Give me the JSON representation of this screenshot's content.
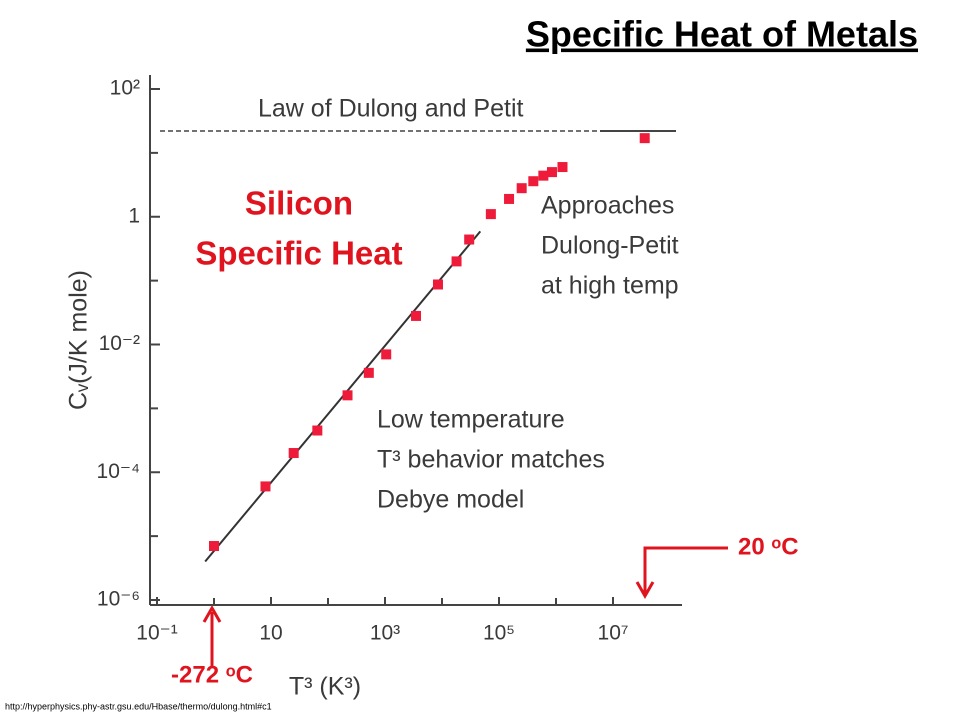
{
  "chart_data": {
    "type": "scatter",
    "title": "Specific Heat of Metals",
    "x_label": "T³ (K³)",
    "y_label": "Cᵥ(J/K mole)",
    "log_x": true,
    "log_y": true,
    "xlim": [
      0.1,
      100000000
    ],
    "ylim": [
      1e-06,
      100
    ],
    "xticks": [
      {
        "value": 0.1,
        "label": "10⁻¹"
      },
      10,
      {
        "value": 1000,
        "label": "10³"
      },
      {
        "value": 100000,
        "label": "10⁵"
      },
      {
        "value": 10000000,
        "label": "10⁷"
      }
    ],
    "minor_xticks": [
      1,
      100,
      10000,
      1000000
    ],
    "yticks": [
      {
        "value": 100,
        "label": "10²"
      },
      1,
      {
        "value": 0.01,
        "label": "10⁻²"
      },
      {
        "value": 0.0001,
        "label": "10⁻⁴"
      },
      {
        "value": 1e-06,
        "label": "10⁻⁶"
      }
    ],
    "minor_yticks": [
      10,
      0.1,
      0.001,
      1e-05
    ],
    "color": "#ee1c3a",
    "x": [
      1,
      8,
      25,
      65,
      220,
      520,
      1050,
      3500,
      8500,
      18000,
      30000,
      72000,
      150000,
      250000,
      400000,
      600000,
      850000,
      1300000,
      36000000
    ],
    "values": [
      7e-06,
      6e-05,
      0.0002,
      0.00045,
      0.0016,
      0.0036,
      0.007,
      0.028,
      0.087,
      0.2,
      0.44,
      1.1,
      1.9,
      2.8,
      3.6,
      4.4,
      5,
      6,
      17
    ],
    "fit_line": {
      "x": [
        0.7,
        47000
      ],
      "y": [
        4e-06,
        0.59
      ]
    },
    "dulong_petit_value": 22,
    "dulong_petit_label": "Law of Dulong and Petit",
    "high_temp_note": [
      "Approaches",
      "Dulong-Petit",
      "at high temp"
    ],
    "low_temp_note": [
      "Low temperature",
      "T³ behavior matches",
      "Debye model"
    ],
    "material_label": [
      "Silicon",
      "Specific Heat"
    ],
    "low_marker": {
      "label": "-272 ᵒC"
    },
    "high_marker": {
      "label": "20 ᵒC"
    },
    "source": "http://hyperphysics.phy-astr.gsu.edu/Hbase/thermo/dulong.html#c1"
  }
}
